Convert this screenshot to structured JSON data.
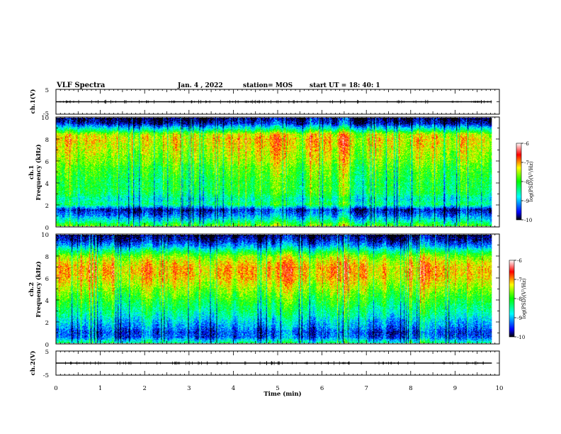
{
  "header": {
    "title": "VLF Spectra",
    "date": "Jan. 4 , 2022",
    "station": "station= MOS",
    "start": "start UT =  18: 40: 1"
  },
  "x_axis": {
    "label": "Time (min)",
    "ticks": [
      "0",
      "1",
      "2",
      "3",
      "4",
      "5",
      "6",
      "7",
      "8",
      "9",
      "10"
    ]
  },
  "panels": {
    "ch1_amp": {
      "ylabel": "ch.1(V)",
      "ticks": [
        "5",
        "-5"
      ]
    },
    "ch1_spec": {
      "ylabel_top": "ch.1",
      "ylabel_bottom": "Frequency (kHz)",
      "ticks": [
        "10",
        "8",
        "6",
        "4",
        "2",
        "0"
      ]
    },
    "ch2_spec": {
      "ylabel_top": "ch.2",
      "ylabel_bottom": "Frequency (kHz)",
      "ticks": [
        "10",
        "8",
        "6",
        "4",
        "2",
        "0"
      ]
    },
    "ch2_amp": {
      "ylabel": "ch.2(V)",
      "ticks": [
        "5",
        "-5"
      ]
    }
  },
  "colorbar": {
    "label": "log(PSD)(V²/Hz)",
    "ticks": [
      "-6",
      "-7",
      "-8",
      "-9",
      "-10"
    ],
    "range": [
      -10,
      -6
    ]
  },
  "colors": {
    "scale": [
      "#000000",
      "#0000ff",
      "#00ffff",
      "#00ff00",
      "#ffff00",
      "#ff0000",
      "#ffffff"
    ]
  },
  "chart_data": {
    "type": "heatmap",
    "title": "VLF Spectra",
    "xlabel": "Time (min)",
    "xlim": [
      0,
      10
    ],
    "time_range_min": [
      0,
      9.83
    ],
    "spectrogram_channels": [
      {
        "channel": "ch.1",
        "ylabel": "Frequency (kHz)",
        "ylim": [
          0,
          10
        ],
        "freq_kHz": [
          0,
          0.5,
          1,
          1.5,
          2,
          2.5,
          3,
          3.5,
          4,
          4.5,
          5,
          5.5,
          6,
          6.5,
          7,
          7.5,
          8,
          8.5,
          9,
          9.5,
          10
        ],
        "mean_log_psd": [
          -7.8,
          -8.6,
          -9.2,
          -9.6,
          -8.3,
          -8.6,
          -8.2,
          -8.1,
          -8.1,
          -8.0,
          -7.9,
          -7.8,
          -7.6,
          -7.5,
          -7.4,
          -7.3,
          -7.2,
          -7.4,
          -8.6,
          -9.6,
          -9.9
        ]
      },
      {
        "channel": "ch.2",
        "ylabel": "Frequency (kHz)",
        "ylim": [
          0,
          10
        ],
        "freq_kHz": [
          0,
          0.5,
          1,
          1.5,
          2,
          2.5,
          3,
          3.5,
          4,
          4.5,
          5,
          5.5,
          6,
          6.5,
          7,
          7.5,
          8,
          8.5,
          9,
          9.5,
          10
        ],
        "mean_log_psd": [
          -8.4,
          -9.3,
          -9.4,
          -9.1,
          -8.9,
          -8.6,
          -8.4,
          -8.2,
          -8.0,
          -7.8,
          -7.6,
          -7.4,
          -7.2,
          -7.1,
          -7.1,
          -7.3,
          -7.6,
          -8.3,
          -9.1,
          -9.6,
          -9.9
        ]
      }
    ],
    "amplitude_channels": [
      {
        "channel": "ch.1(V)",
        "ylim": [
          -5,
          5
        ],
        "mean_V": 0
      },
      {
        "channel": "ch.2(V)",
        "ylim": [
          -5,
          5
        ],
        "mean_V": 0
      }
    ],
    "colorbar_range": [
      -10,
      -6
    ]
  }
}
